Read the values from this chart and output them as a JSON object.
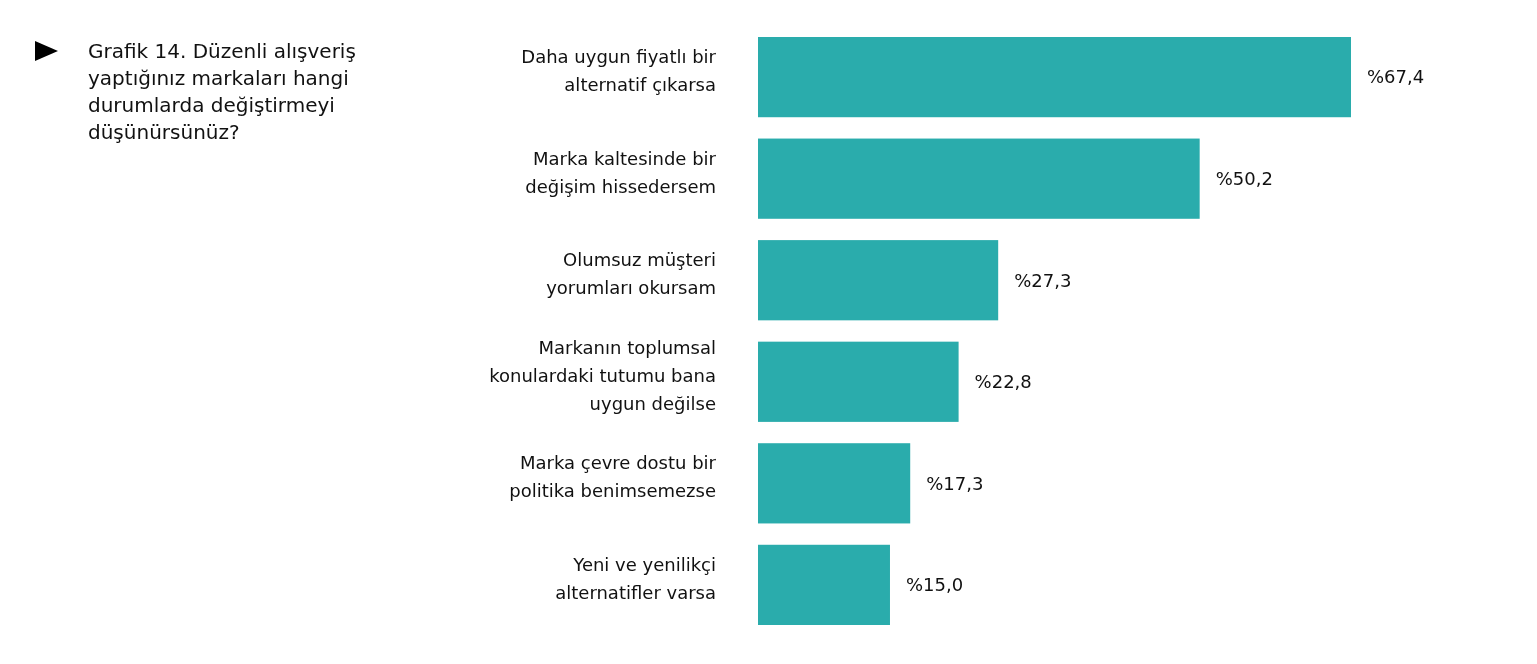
{
  "chart_data": {
    "type": "bar",
    "orientation": "horizontal",
    "title": "Grafik 14. Düzenli alışveriş yaptığınız markaları hangi durumlarda değiştirmeyi düşünürsünüz?",
    "categories": [
      "Daha uygun fiyatlı bir alternatif çıkarsa",
      "Marka kaltesinde bir değişim hissedersem",
      "Olumsuz müşteri yorumları okursam",
      "Markanın toplumsal konulardaki tutumu bana uygun değilse",
      "Marka çevre dostu bir politika benimsemezse",
      "Yeni ve yenilikçi alternatifler varsa"
    ],
    "values": [
      67.4,
      50.2,
      27.3,
      22.8,
      17.3,
      15.0
    ],
    "value_labels": [
      "%67,4",
      "%50,2",
      "%27,3",
      "%22,8",
      "%17,3",
      "%15,0"
    ],
    "color": "#2aacac"
  }
}
